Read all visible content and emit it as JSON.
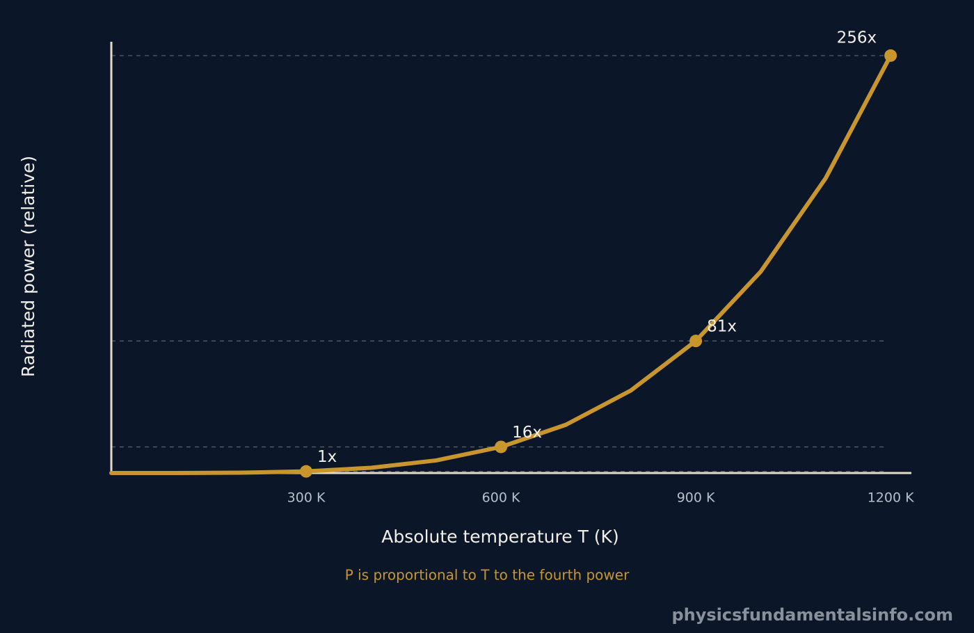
{
  "chart_data": {
    "type": "line",
    "y_label": "Radiated power (relative)",
    "x_label": "Absolute temperature T (K)",
    "subtitle": "P is proportional to T to the fourth power",
    "watermark": "physicsfundamentalsinfo.com",
    "color": "#c9962e",
    "x": [
      0,
      100,
      200,
      300,
      400,
      500,
      600,
      700,
      800,
      900,
      1000,
      1100,
      1200
    ],
    "values": [
      0,
      0.01,
      0.2,
      1,
      3.2,
      7.7,
      16,
      29.6,
      50.6,
      81,
      123.5,
      180.8,
      256
    ],
    "markers": {
      "x": [
        300,
        600,
        900,
        1200
      ],
      "values": [
        1,
        16,
        81,
        256
      ],
      "value_labels": [
        "1x",
        "16x",
        "81x",
        "256x"
      ]
    },
    "xlim": [
      0,
      1232
    ],
    "ylim": [
      0,
      264.5
    ],
    "xticks": [
      {
        "value": 300,
        "label": "300 K"
      },
      {
        "value": 600,
        "label": "600 K"
      },
      {
        "value": 900,
        "label": "900 K"
      },
      {
        "value": 1200,
        "label": "1200 K"
      }
    ]
  }
}
